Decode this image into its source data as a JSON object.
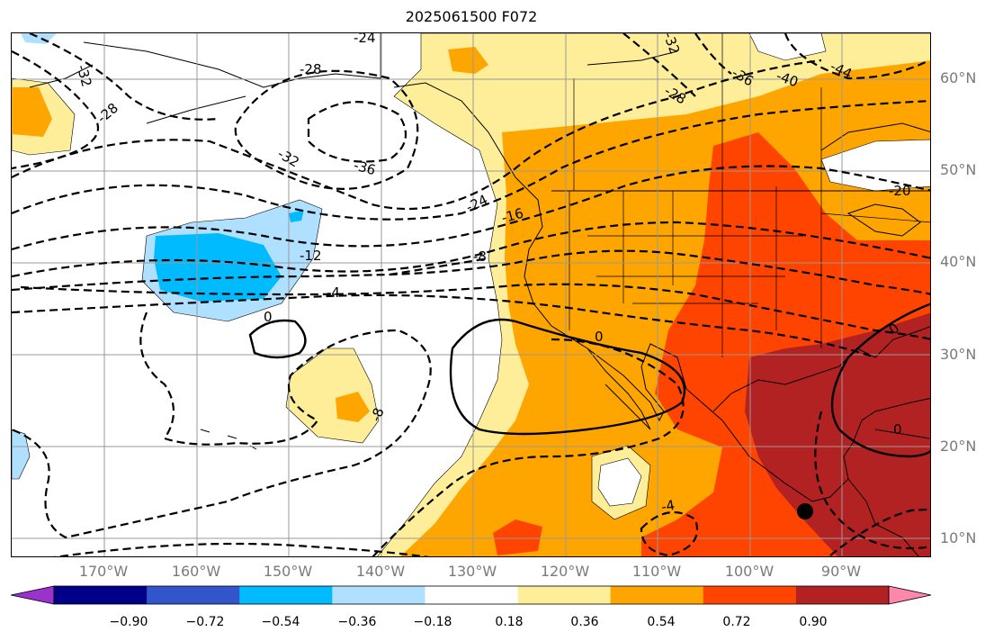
{
  "title": "2025061500 F072",
  "map": {
    "projection": "plate-carree",
    "lon_range": [
      -180,
      -80
    ],
    "lat_range": [
      8,
      65
    ],
    "gridlines": true,
    "field": "shaded anomaly with dashed/solid height contours",
    "marker": {
      "name": "storm-center-dot",
      "lon": -93.5,
      "lat": 13
    }
  },
  "lat_labels": [
    "60°N",
    "50°N",
    "40°N",
    "30°N",
    "20°N",
    "10°N"
  ],
  "lon_labels": [
    "170°W",
    "160°W",
    "150°W",
    "140°W",
    "130°W",
    "120°W",
    "110°W",
    "100°W",
    "90°W"
  ],
  "contour_labels": [
    "-24",
    "-32",
    "-28",
    "-28",
    "-32",
    "-36",
    "-32",
    "-28",
    "-36",
    "-40",
    "-44",
    "-20",
    "-24",
    "-16",
    "-12",
    "-8",
    "-4",
    "0",
    "0",
    "-8",
    "0",
    "-4",
    "0"
  ],
  "colorbar": {
    "ticks": [
      "−0.90",
      "−0.72",
      "−0.54",
      "−0.36",
      "−0.18",
      "0.18",
      "0.36",
      "0.54",
      "0.72",
      "0.90"
    ],
    "colors": [
      "#9933cc",
      "#000088",
      "#3355cc",
      "#00bbff",
      "#b0e0ff",
      "#ffffff",
      "#ffee99",
      "#ffa500",
      "#ff4400",
      "#b22222",
      "#ff88aa"
    ]
  },
  "colors": {
    "light_yellow": "#ffee99",
    "orange": "#ffa500",
    "red_orange": "#ff4400",
    "dark_red": "#b22222",
    "light_blue": "#b0e0ff",
    "sky_blue": "#00bbff",
    "grid": "#999999"
  }
}
